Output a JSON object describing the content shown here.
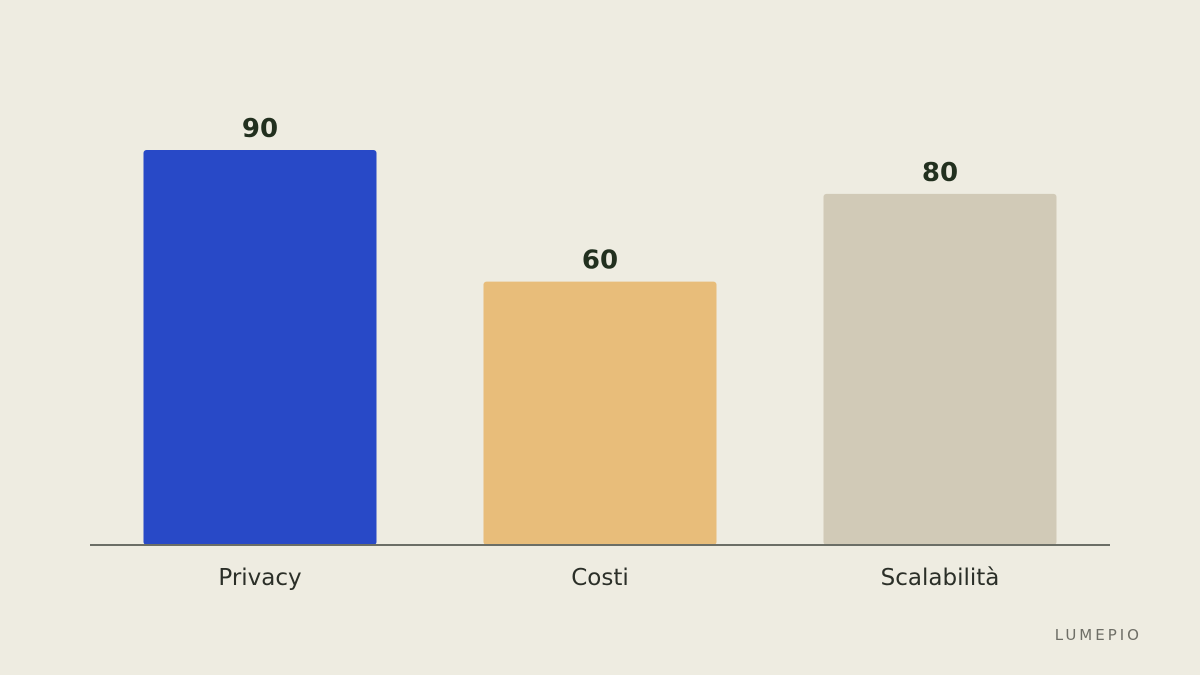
{
  "brand": "LUMEPIO",
  "colors": {
    "background": "#EEECE1",
    "axis": "#6B6E66",
    "bars": [
      "#2849C7",
      "#E8BD7A",
      "#D1CAB7"
    ]
  },
  "chart_data": {
    "type": "bar",
    "categories": [
      "Privacy",
      "Costi",
      "Scalabilità"
    ],
    "values": [
      90,
      60,
      80
    ],
    "title": "",
    "xlabel": "",
    "ylabel": "",
    "ylim": [
      0,
      100
    ],
    "grid": false,
    "data_labels": true
  }
}
